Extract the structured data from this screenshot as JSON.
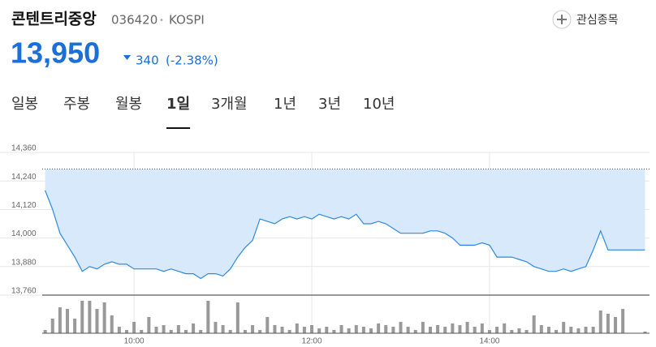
{
  "header": {
    "title": "콘텐트리중앙",
    "code": "036420",
    "separator": "•",
    "market": "KOSPI",
    "watch_button": "관심종목",
    "price": "13,950",
    "change": "340",
    "change_pct": "(-2.38%)"
  },
  "tabs": {
    "items": [
      "일봉",
      "주봉",
      "월봉",
      "1일",
      "3개월",
      "1년",
      "3년",
      "10년"
    ],
    "active_index": 3
  },
  "chart_data": {
    "type": "line",
    "color": "#2d8ae0",
    "fill": "#d7e9fb",
    "baseline": 14290,
    "grid": true,
    "xlim": [
      538,
      948
    ],
    "xticks": [
      {
        "value": 600,
        "label": "10:00"
      },
      {
        "value": 720,
        "label": "12:00"
      },
      {
        "value": 840,
        "label": "14:00"
      }
    ],
    "ylim": [
      13760,
      14360
    ],
    "yticks": [
      {
        "value": 14360,
        "label": "14,360"
      },
      {
        "value": 14240,
        "label": "14,240"
      },
      {
        "value": 14120,
        "label": "14,120"
      },
      {
        "value": 14000,
        "label": "14,000"
      },
      {
        "value": 13880,
        "label": "13,880"
      },
      {
        "value": 13760,
        "label": "13,760"
      }
    ],
    "x": [
      540,
      545,
      550,
      555,
      560,
      565,
      570,
      575,
      580,
      585,
      590,
      595,
      600,
      605,
      610,
      615,
      620,
      625,
      630,
      635,
      640,
      645,
      650,
      655,
      660,
      665,
      670,
      675,
      680,
      685,
      690,
      695,
      700,
      705,
      710,
      715,
      720,
      725,
      730,
      735,
      740,
      745,
      750,
      755,
      760,
      765,
      770,
      775,
      780,
      785,
      790,
      795,
      800,
      805,
      810,
      815,
      820,
      825,
      830,
      835,
      840,
      845,
      850,
      855,
      860,
      865,
      870,
      875,
      880,
      885,
      890,
      895,
      900,
      905,
      910,
      915,
      920,
      925,
      930,
      935,
      940,
      945
    ],
    "values": [
      14200,
      14120,
      14020,
      13970,
      13920,
      13860,
      13880,
      13870,
      13890,
      13900,
      13890,
      13890,
      13870,
      13870,
      13870,
      13870,
      13860,
      13870,
      13860,
      13850,
      13850,
      13830,
      13850,
      13850,
      13840,
      13870,
      13920,
      13960,
      13990,
      14080,
      14070,
      14060,
      14080,
      14090,
      14080,
      14090,
      14080,
      14100,
      14090,
      14080,
      14090,
      14080,
      14100,
      14060,
      14060,
      14070,
      14060,
      14040,
      14020,
      14020,
      14020,
      14020,
      14030,
      14030,
      14020,
      14000,
      13970,
      13970,
      13970,
      13980,
      13970,
      13920,
      13920,
      13920,
      13910,
      13900,
      13880,
      13870,
      13860,
      13860,
      13870,
      13860,
      13870,
      13880,
      13950,
      14030,
      13950,
      13950,
      13950,
      13950,
      13950,
      13950
    ],
    "volume": {
      "color": "#999999",
      "ylim": [
        0,
        45
      ],
      "values": [
        4,
        18,
        32,
        30,
        18,
        40,
        40,
        30,
        38,
        22,
        8,
        4,
        14,
        4,
        20,
        8,
        10,
        4,
        10,
        4,
        12,
        4,
        40,
        14,
        10,
        4,
        38,
        4,
        10,
        4,
        20,
        10,
        8,
        4,
        12,
        8,
        10,
        6,
        8,
        4,
        10,
        6,
        10,
        8,
        6,
        12,
        10,
        8,
        14,
        8,
        4,
        14,
        8,
        10,
        8,
        12,
        10,
        14,
        8,
        12,
        4,
        8,
        12,
        4,
        6,
        4,
        22,
        10,
        8,
        4,
        14,
        8,
        6,
        8,
        8,
        28,
        24,
        20,
        30,
        0,
        0,
        2
      ]
    }
  }
}
